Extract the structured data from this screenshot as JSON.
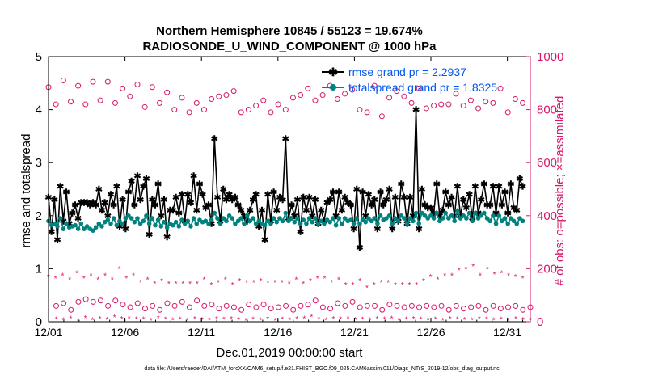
{
  "chart_data": {
    "type": "line",
    "title": "Northern Hemisphere 10845 / 55123 = 19.674%",
    "subtitle": "RADIOSONDE_U_WIND_COMPONENT @ 1000 hPa",
    "xlabel": "Dec.01,2019 00:00:00 start",
    "ylabel_left": "rmse and totalspread",
    "ylabel_right": "# of obs: o=possible; ×=assimilated",
    "footer": "data file: /Users/raeder/DAI/ATM_forcXX/CAM6_setup/f.e21.FHIST_BGC.f09_025.CAM6assim.011/Diags_NTrS_2019-12/obs_diag_output.nc",
    "x_range": [
      0,
      31.5
    ],
    "x_ticks": [
      0,
      5,
      10,
      15,
      20,
      25,
      30
    ],
    "x_tick_labels": [
      "12/01",
      "12/06",
      "12/11",
      "12/16",
      "12/21",
      "12/26",
      "12/31"
    ],
    "ylim_left": [
      0,
      5
    ],
    "y_ticks_left": [
      "0",
      "1",
      "2",
      "3",
      "4",
      "5"
    ],
    "ylim_right": [
      0,
      1000
    ],
    "y_ticks_right": [
      "0",
      "200",
      "400",
      "600",
      "800",
      "1000"
    ],
    "legend": [
      {
        "label": "rmse grand pr = 2.2937",
        "color": "#000000",
        "marker": "asterisk"
      },
      {
        "label": "totalspread grand pr = 1.8325",
        "color": "#00827f",
        "marker": "dot"
      }
    ],
    "colors": {
      "rmse": "#000000",
      "totalspread": "#00827f",
      "obs": "#d6176a",
      "legend_text": "#0055ee"
    },
    "series": [
      {
        "name": "rmse",
        "axis": "left",
        "values": [
          2.35,
          1.7,
          2.3,
          1.55,
          2.55,
          1.9,
          2.45,
          1.85,
          2.05,
          2.2,
          1.95,
          2.25,
          2.25,
          2.25,
          2.2,
          2.25,
          2.2,
          2.5,
          2.1,
          2.25,
          2.0,
          2.4,
          2.2,
          2.55,
          1.8,
          2.3,
          1.75,
          2.45,
          2.65,
          2.2,
          2.75,
          2.3,
          2.55,
          2.7,
          1.65,
          2.3,
          2.2,
          2.6,
          2.0,
          2.3,
          1.6,
          2.1,
          2.1,
          2.35,
          2.05,
          2.4,
          1.9,
          2.4,
          2.25,
          2.75,
          2.1,
          2.6,
          2.4,
          2.15,
          2.2,
          1.85,
          3.45,
          2.35,
          1.9,
          2.5,
          2.3,
          2.4,
          2.3,
          2.35,
          2.2,
          2.1,
          2.0,
          1.9,
          2.1,
          2.3,
          2.4,
          1.8,
          2.1,
          1.55,
          2.4,
          1.9,
          2.45,
          2.1,
          2.35,
          2.3,
          3.45,
          1.95,
          2.2,
          2.0,
          2.3,
          1.7,
          2.35,
          2.1,
          2.35,
          2.0,
          2.3,
          1.85,
          2.1,
          1.9,
          2.25,
          2.3,
          2.45,
          2.0,
          2.45,
          2.1,
          2.35,
          2.25,
          2.2,
          1.75,
          2.5,
          1.4,
          2.45,
          2.0,
          2.4,
          2.2,
          2.3,
          1.75,
          2.45,
          2.2,
          2.3,
          2.5,
          1.75,
          2.35,
          1.9,
          2.6,
          2.35,
          1.85,
          2.35,
          2.0,
          4.0,
          1.75,
          2.5,
          2.2,
          2.15,
          2.15,
          2.05,
          2.6,
          2.0,
          2.1,
          2.45,
          2.2,
          2.35,
          2.0,
          2.55,
          2.0,
          2.3,
          2.15,
          2.4,
          1.95,
          2.55,
          2.05,
          2.3,
          2.6,
          2.2,
          2.2,
          2.55,
          2.05,
          2.55,
          2.2,
          2.45,
          2.05,
          2.6,
          2.15,
          2.1,
          2.7,
          2.55
        ]
      },
      {
        "name": "totalspread",
        "axis": "left",
        "values": [
          1.9,
          1.82,
          1.85,
          1.8,
          1.95,
          1.75,
          1.85,
          1.78,
          1.8,
          1.82,
          1.75,
          1.85,
          1.75,
          1.8,
          1.75,
          1.72,
          1.78,
          1.85,
          1.8,
          1.88,
          1.92,
          1.85,
          1.95,
          1.82,
          1.9,
          1.85,
          1.95,
          2.0,
          1.95,
          1.88,
          1.95,
          1.85,
          1.9,
          2.0,
          1.85,
          1.95,
          1.82,
          1.92,
          1.8,
          1.88,
          1.78,
          1.85,
          1.82,
          1.88,
          1.8,
          1.92,
          1.85,
          1.9,
          1.8,
          1.95,
          1.85,
          1.92,
          1.88,
          1.9,
          1.85,
          1.92,
          2.05,
          1.95,
          1.85,
          1.95,
          1.9,
          2.0,
          1.95,
          1.85,
          1.9,
          1.95,
          1.85,
          2.0,
          1.9,
          1.95,
          1.85,
          1.9,
          1.85,
          1.82,
          1.9,
          1.85,
          1.95,
          1.88,
          1.95,
          1.9,
          2.05,
          1.9,
          1.95,
          1.88,
          1.95,
          1.85,
          1.92,
          1.85,
          1.95,
          1.88,
          1.95,
          1.85,
          1.9,
          1.85,
          1.92,
          1.88,
          1.95,
          1.82,
          1.95,
          1.85,
          1.95,
          1.9,
          1.92,
          1.85,
          1.95,
          1.85,
          1.92,
          1.88,
          1.95,
          1.9,
          1.95,
          1.85,
          2.0,
          1.92,
          1.95,
          2.0,
          1.85,
          1.95,
          1.9,
          2.0,
          1.95,
          1.85,
          1.95,
          1.9,
          2.05,
          1.85,
          2.05,
          2.0,
          1.95,
          2.0,
          1.95,
          2.05,
          1.9,
          1.95,
          2.05,
          1.95,
          2.0,
          1.9,
          2.1,
          1.95,
          2.0,
          1.95,
          2.05,
          1.9,
          2.05,
          1.95,
          2.0,
          2.05,
          1.95,
          1.9,
          2.0,
          1.85,
          2.0,
          1.9,
          1.95,
          1.85,
          1.95,
          1.9,
          1.85,
          1.95,
          1.9
        ]
      },
      {
        "name": "obs possible (00Z)",
        "axis": "right",
        "marker": "circle",
        "values": [
          885,
          820,
          910,
          830,
          890,
          820,
          905,
          835,
          905,
          825,
          880,
          850,
          895,
          810,
          885,
          825,
          865,
          800,
          845,
          790,
          825,
          800,
          840,
          850,
          855,
          870,
          790,
          800,
          815,
          835,
          790,
          820,
          800,
          845,
          855,
          880,
          835,
          855,
          890,
          840,
          860,
          875,
          800,
          790,
          890,
          775,
          845,
          870,
          850,
          825,
          880,
          805,
          815,
          820,
          820,
          860,
          815,
          835,
          805,
          830,
          825,
          880,
          790,
          840,
          825
        ]
      },
      {
        "name": "obs possible (12Z)",
        "axis": "right",
        "marker": "circle",
        "values": [
          60,
          70,
          45,
          75,
          85,
          75,
          80,
          60,
          80,
          65,
          55,
          70,
          50,
          60,
          45,
          70,
          60,
          75,
          55,
          80,
          60,
          65,
          50,
          60,
          55,
          45,
          65,
          55,
          65,
          50,
          55,
          60,
          45,
          60,
          65,
          80,
          55,
          50,
          70,
          60,
          75,
          55,
          60,
          60,
          45,
          65,
          60,
          55,
          60,
          55,
          60,
          55,
          60,
          45,
          60,
          50,
          55,
          60,
          45,
          60,
          50,
          55,
          60,
          45,
          55
        ]
      },
      {
        "name": "obs assimilated (00Z)",
        "axis": "right",
        "marker": "asterisk",
        "values": [
          170,
          165,
          175,
          160,
          185,
          165,
          175,
          160,
          175,
          160,
          200,
          165,
          175,
          150,
          160,
          145,
          155,
          145,
          145,
          145,
          145,
          145,
          160,
          140,
          150,
          160,
          140,
          155,
          150,
          150,
          155,
          150,
          150,
          150,
          145,
          160,
          145,
          155,
          165,
          165,
          150,
          160,
          140,
          140,
          155,
          130,
          140,
          150,
          150,
          140,
          140,
          140,
          140,
          155,
          170,
          160,
          175,
          175,
          195,
          200,
          210,
          175,
          200,
          180,
          185,
          175,
          170,
          165
        ]
      },
      {
        "name": "obs assimilated (12Z)",
        "axis": "right",
        "marker": "asterisk",
        "values": [
          10,
          8,
          14,
          6,
          15,
          8,
          12,
          9,
          18,
          12,
          14,
          10,
          10,
          6,
          15,
          10,
          8,
          10,
          6,
          12,
          9,
          8,
          12,
          10,
          12,
          9,
          6,
          10,
          8,
          12,
          6,
          10,
          8,
          12,
          14,
          20,
          10,
          8,
          12,
          10,
          14,
          9,
          10,
          8,
          12,
          10,
          14,
          8,
          10,
          12,
          10,
          8,
          10,
          6,
          12,
          10,
          9,
          8,
          12,
          10,
          8,
          10,
          6,
          12,
          9,
          8
        ]
      }
    ]
  }
}
